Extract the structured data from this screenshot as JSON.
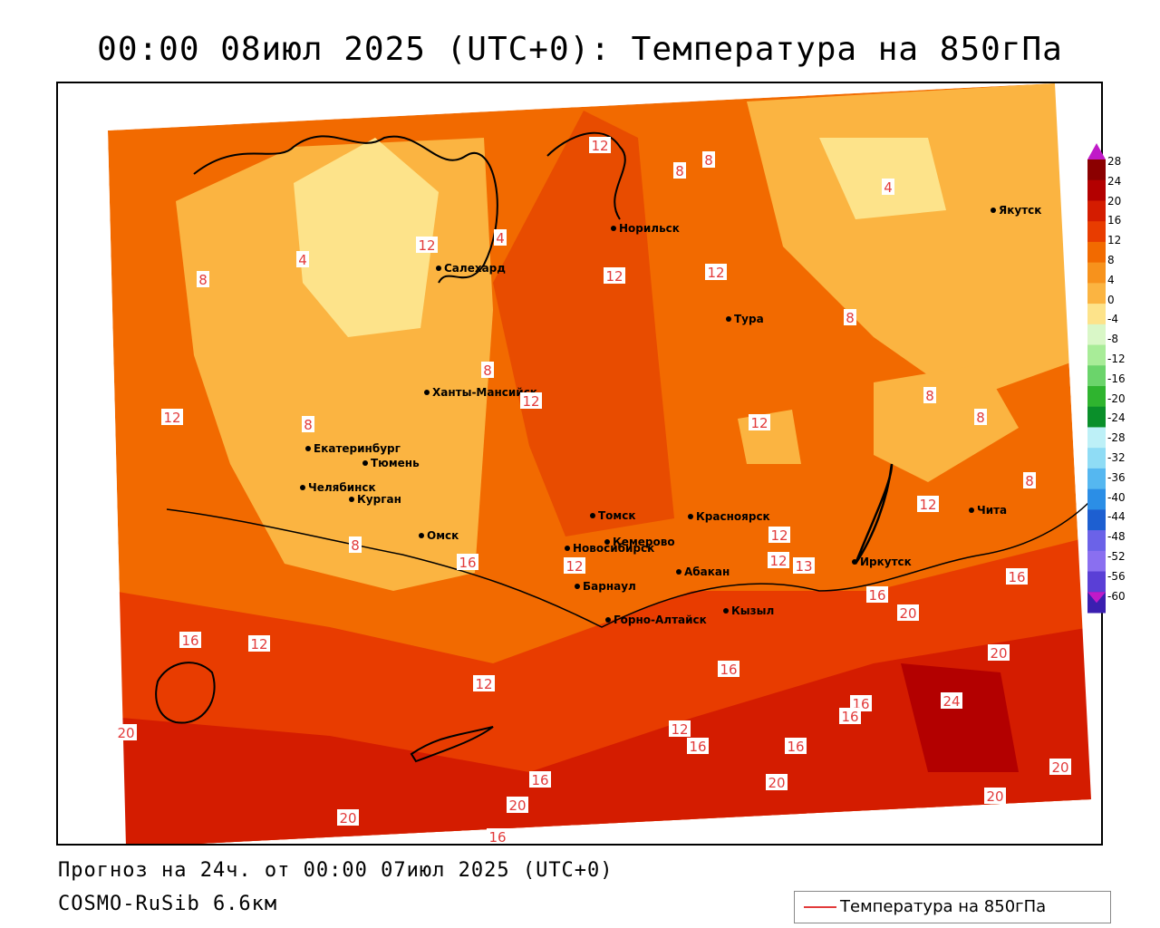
{
  "title": "00:00 08июл 2025 (UTC+0): Температура на 850гПа",
  "footer": {
    "forecast": "Прогноз на 24ч. от 00:00 07июл 2025 (UTC+0)",
    "model": "COSMO-RuSib 6.6км"
  },
  "legend": {
    "label": "Температура на 850гПа",
    "line_color": "#e23b3b"
  },
  "colorbar": {
    "labels": [
      "28",
      "24",
      "20",
      "16",
      "12",
      "8",
      "4",
      "0",
      "-4",
      "-8",
      "-12",
      "-16",
      "-20",
      "-24",
      "-28",
      "-32",
      "-36",
      "-40",
      "-44",
      "-48",
      "-52",
      "-56",
      "-60"
    ],
    "colors": [
      "#8b0000",
      "#b30000",
      "#d41c00",
      "#e83c00",
      "#f26a00",
      "#f7921c",
      "#fbb441",
      "#fde38a",
      "#d9f7c7",
      "#a8ec98",
      "#6bd46b",
      "#2fb42f",
      "#0a8f2a",
      "#bdf0f7",
      "#8fdcf5",
      "#55b7f0",
      "#2b8ee6",
      "#1d5fd1",
      "#6b62e8",
      "#8a6ff0",
      "#5a3fd6",
      "#3a1fb0",
      "#c01ac8"
    ]
  },
  "cities": [
    {
      "name": "Норильск"
    },
    {
      "name": "Якутск"
    },
    {
      "name": "Салехард"
    },
    {
      "name": "Тура"
    },
    {
      "name": "Ханты-Мансийск"
    },
    {
      "name": "Екатеринбург"
    },
    {
      "name": "Тюмень"
    },
    {
      "name": "Челябинск"
    },
    {
      "name": "Курган"
    },
    {
      "name": "Омск"
    },
    {
      "name": "Томск"
    },
    {
      "name": "Красноярск"
    },
    {
      "name": "Новосибирск"
    },
    {
      "name": "Кемерово"
    },
    {
      "name": "Абакан"
    },
    {
      "name": "Иркутск"
    },
    {
      "name": "Барнаул"
    },
    {
      "name": "Горно-Алтайск"
    },
    {
      "name": "Кызыл"
    },
    {
      "name": "Чита"
    }
  ],
  "isotherm_labels": [
    "12",
    "8",
    "8",
    "4",
    "4",
    "12",
    "4",
    "8",
    "12",
    "12",
    "8",
    "8",
    "12",
    "8",
    "12",
    "8",
    "8",
    "12",
    "12",
    "8",
    "12",
    "12",
    "12",
    "13",
    "16",
    "16",
    "8",
    "16",
    "20",
    "12",
    "12",
    "16",
    "20",
    "16",
    "24",
    "16",
    "16",
    "12",
    "16",
    "16",
    "20",
    "20",
    "20",
    "16",
    "20",
    "16",
    "20",
    "20"
  ]
}
